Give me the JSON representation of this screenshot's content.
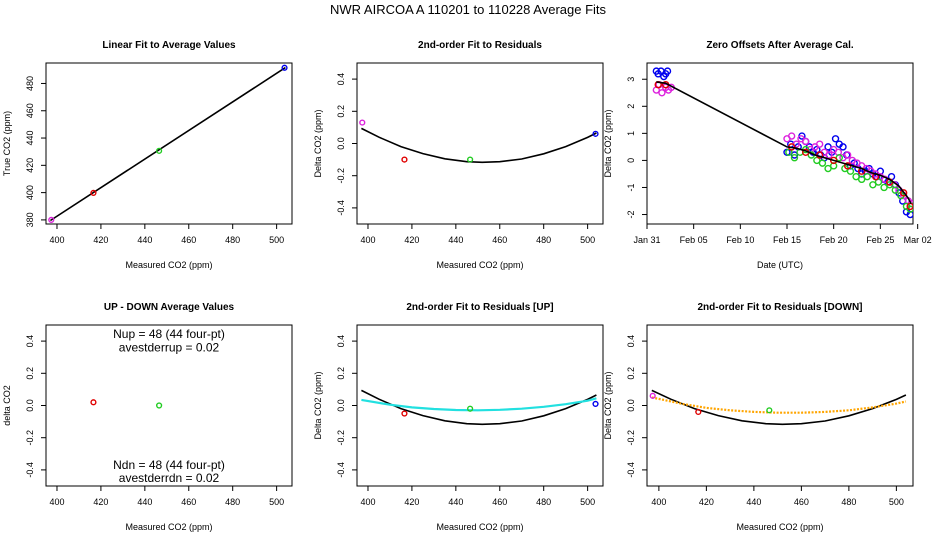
{
  "figure_title": "NWR   AIRCOA A   110201 to 110228   Average Fits",
  "colors": {
    "red": "#e00000",
    "green": "#22cc22",
    "blue": "#0000ee",
    "magenta": "#dd22dd",
    "black": "#000000",
    "cyan": "#22e0e0",
    "orange": "#ffa500"
  },
  "chart_data": [
    {
      "id": "p1",
      "type": "scatter",
      "title": "Linear Fit to Average Values",
      "xlabel": "Measured CO2 (ppm)",
      "ylabel": "True CO2 (ppm)",
      "xlim": [
        395,
        507
      ],
      "ylim": [
        377,
        495
      ],
      "xticks": [
        400,
        420,
        440,
        460,
        480,
        500
      ],
      "yticks": [
        380,
        400,
        420,
        440,
        460,
        480
      ],
      "points": [
        {
          "x": 397.4,
          "y": 380.0,
          "color": "magenta"
        },
        {
          "x": 416.6,
          "y": 399.8,
          "color": "red"
        },
        {
          "x": 446.5,
          "y": 430.6,
          "color": "green"
        },
        {
          "x": 503.6,
          "y": 491.5,
          "color": "blue"
        }
      ],
      "lines": [
        {
          "name": "linear fit",
          "color": "black",
          "width": 1.6,
          "x": [
            397,
            504
          ],
          "y": [
            379.6,
            491.6
          ]
        }
      ]
    },
    {
      "id": "p2",
      "type": "scatter",
      "title": "2nd-order Fit to Residuals",
      "xlabel": "Measured CO2 (ppm)",
      "ylabel": "Delta CO2 (ppm)",
      "xlim": [
        395,
        507
      ],
      "ylim": [
        -0.5,
        0.5
      ],
      "xticks": [
        400,
        420,
        440,
        460,
        480,
        500
      ],
      "yticks": [
        -0.4,
        -0.2,
        0.0,
        0.2,
        0.4
      ],
      "points": [
        {
          "x": 397.4,
          "y": 0.13,
          "color": "magenta"
        },
        {
          "x": 416.6,
          "y": -0.1,
          "color": "red"
        },
        {
          "x": 446.5,
          "y": -0.1,
          "color": "green"
        },
        {
          "x": 503.6,
          "y": 0.06,
          "color": "blue"
        }
      ],
      "lines": [
        {
          "name": "quadratic fit",
          "color": "black",
          "width": 1.6,
          "x": [
            397,
            405,
            415,
            425,
            435,
            445,
            452,
            460,
            470,
            480,
            490,
            500,
            504
          ],
          "y": [
            0.094,
            0.039,
            -0.019,
            -0.063,
            -0.095,
            -0.113,
            -0.117,
            -0.113,
            -0.096,
            -0.064,
            -0.019,
            0.038,
            0.065
          ]
        }
      ]
    },
    {
      "id": "p3",
      "type": "scatter",
      "title": "Zero Offsets After Average Cal.",
      "xlabel": "Date (UTC)",
      "ylabel": "Delta CO2 (ppm)",
      "xlim": [
        0,
        28.5
      ],
      "ylim": [
        -2.35,
        3.6
      ],
      "xticks": [
        0,
        5,
        10,
        15,
        20,
        25,
        29
      ],
      "xticklabels": [
        "Jan 31",
        "Feb 05",
        "Feb 10",
        "Feb 15",
        "Feb 20",
        "Feb 25",
        "Mar 02"
      ],
      "yticks": [
        -2,
        -1,
        0,
        1,
        2,
        3
      ],
      "series": [
        {
          "name": "blue",
          "color": "blue",
          "x": [
            1.0,
            1.2,
            1.5,
            1.8,
            2.0,
            2.2,
            15.0,
            15.4,
            15.8,
            16.2,
            16.6,
            17.0,
            17.4,
            17.8,
            18.2,
            18.6,
            19.0,
            19.4,
            19.8,
            20.2,
            20.6,
            21.0,
            21.4,
            21.8,
            22.2,
            22.6,
            23.0,
            23.4,
            23.8,
            24.2,
            24.6,
            25.0,
            25.4,
            25.8,
            26.2,
            26.6,
            27.0,
            27.4,
            27.8,
            28.2
          ],
          "y": [
            3.3,
            3.2,
            3.3,
            3.1,
            3.2,
            3.3,
            0.3,
            0.6,
            0.2,
            0.5,
            0.9,
            0.7,
            0.5,
            0.3,
            0.4,
            0.2,
            0.1,
            0.5,
            0.3,
            0.8,
            0.6,
            0.5,
            0.2,
            -0.2,
            -0.1,
            -0.3,
            -0.5,
            -0.4,
            -0.3,
            -0.5,
            -0.6,
            -0.4,
            -0.7,
            -0.8,
            -0.6,
            -0.9,
            -1.2,
            -1.5,
            -1.9,
            -2.0
          ]
        },
        {
          "name": "magenta",
          "color": "magenta",
          "x": [
            1.0,
            1.3,
            1.6,
            2.0,
            2.3,
            2.6,
            15.0,
            15.5,
            16.0,
            16.5,
            17.0,
            17.5,
            18.0,
            18.5,
            19.0,
            19.5,
            20.0,
            20.5,
            21.0,
            21.5,
            22.0,
            22.5,
            23.0,
            23.5,
            24.0,
            24.5,
            25.0,
            25.5,
            26.0,
            26.5,
            27.0,
            27.5,
            28.0,
            28.3
          ],
          "y": [
            2.6,
            2.8,
            2.5,
            2.7,
            2.6,
            2.7,
            0.8,
            0.9,
            0.6,
            0.8,
            0.7,
            0.4,
            0.5,
            0.6,
            0.3,
            0.2,
            0.4,
            0.3,
            0.1,
            0.2,
            0.0,
            -0.1,
            -0.2,
            -0.3,
            -0.4,
            -0.5,
            -0.6,
            -0.7,
            -0.8,
            -0.9,
            -1.1,
            -1.3,
            -1.5,
            -1.6
          ]
        },
        {
          "name": "green",
          "color": "green",
          "x": [
            15.2,
            15.8,
            16.4,
            17.0,
            17.6,
            18.2,
            18.8,
            19.4,
            20.0,
            20.6,
            21.2,
            21.8,
            22.4,
            23.0,
            23.6,
            24.2,
            24.8,
            25.4,
            26.0,
            26.6,
            27.2,
            27.8,
            28.2
          ],
          "y": [
            0.3,
            0.1,
            0.3,
            0.4,
            0.2,
            0.0,
            -0.1,
            -0.3,
            -0.2,
            0.1,
            -0.3,
            -0.4,
            -0.6,
            -0.7,
            -0.6,
            -0.9,
            -0.8,
            -1.0,
            -0.9,
            -1.1,
            -1.3,
            -1.7,
            -1.8
          ]
        },
        {
          "name": "red",
          "color": "red",
          "x": [
            1.2,
            2.0,
            15.5,
            17.0,
            18.5,
            20.0,
            21.5,
            23.0,
            24.5,
            26.0,
            27.5,
            28.2
          ],
          "y": [
            2.8,
            2.8,
            0.5,
            0.3,
            0.2,
            0.0,
            -0.2,
            -0.4,
            -0.6,
            -0.8,
            -1.2,
            -1.7
          ]
        }
      ],
      "lines": [
        {
          "name": "offset trend",
          "color": "black",
          "width": 1.6,
          "x": [
            1.0,
            2.0,
            15.0,
            16.0,
            17.0,
            18.0,
            19.0,
            20.0,
            21.0,
            22.0,
            23.0,
            24.0,
            25.0,
            26.0,
            27.0,
            28.0,
            28.3
          ],
          "y": [
            2.9,
            2.85,
            0.5,
            0.45,
            0.35,
            0.2,
            0.1,
            0.0,
            -0.1,
            -0.2,
            -0.3,
            -0.45,
            -0.55,
            -0.7,
            -0.95,
            -1.4,
            -1.6
          ]
        }
      ]
    },
    {
      "id": "p4",
      "type": "scatter",
      "title": "UP - DOWN Average Values",
      "xlabel": "Measured CO2 (ppm)",
      "ylabel": "delta CO2",
      "xlim": [
        395,
        507
      ],
      "ylim": [
        -0.5,
        0.5
      ],
      "xticks": [
        400,
        420,
        440,
        460,
        480,
        500
      ],
      "yticks": [
        -0.4,
        -0.2,
        0.0,
        0.2,
        0.4
      ],
      "points": [
        {
          "x": 416.6,
          "y": 0.02,
          "color": "red"
        },
        {
          "x": 446.5,
          "y": 0.0,
          "color": "green"
        }
      ],
      "lines": [],
      "annotations": [
        {
          "text": "Nup = 48 (44 four-pt)",
          "x": 451,
          "y": 0.445
        },
        {
          "text": "avestderrup =  0.02",
          "x": 451,
          "y": 0.36
        },
        {
          "text": "Ndn = 48 (44 four-pt)",
          "x": 451,
          "y": -0.37
        },
        {
          "text": "avestderrdn =  0.02",
          "x": 451,
          "y": -0.45
        }
      ]
    },
    {
      "id": "p5",
      "type": "scatter",
      "title": "2nd-order Fit to Residuals [UP]",
      "xlabel": "Measured CO2 (ppm)",
      "ylabel": "Delta CO2 (ppm)",
      "xlim": [
        395,
        507
      ],
      "ylim": [
        -0.5,
        0.5
      ],
      "xticks": [
        400,
        420,
        440,
        460,
        480,
        500
      ],
      "yticks": [
        -0.4,
        -0.2,
        0.0,
        0.2,
        0.4
      ],
      "points": [
        {
          "x": 416.6,
          "y": -0.05,
          "color": "red"
        },
        {
          "x": 446.5,
          "y": -0.02,
          "color": "green"
        },
        {
          "x": 503.6,
          "y": 0.01,
          "color": "blue"
        }
      ],
      "lines": [
        {
          "name": "average fit",
          "color": "black",
          "width": 1.6,
          "x": [
            397,
            405,
            415,
            425,
            435,
            445,
            452,
            460,
            470,
            480,
            490,
            500,
            504
          ],
          "y": [
            0.094,
            0.039,
            -0.019,
            -0.063,
            -0.095,
            -0.113,
            -0.117,
            -0.113,
            -0.096,
            -0.064,
            -0.019,
            0.038,
            0.065
          ]
        },
        {
          "name": "up fit",
          "color": "cyan",
          "width": 2.2,
          "x": [
            397,
            410,
            420,
            430,
            440,
            450,
            460,
            470,
            480,
            490,
            500,
            504
          ],
          "y": [
            0.035,
            0.005,
            -0.012,
            -0.022,
            -0.028,
            -0.03,
            -0.027,
            -0.02,
            -0.008,
            0.008,
            0.03,
            0.045
          ]
        }
      ]
    },
    {
      "id": "p6",
      "type": "scatter",
      "title": "2nd-order Fit to Residuals [DOWN]",
      "xlabel": "Measured CO2 (ppm)",
      "ylabel": "Delta CO2 (ppm)",
      "xlim": [
        395,
        507
      ],
      "ylim": [
        -0.5,
        0.5
      ],
      "xticks": [
        400,
        420,
        440,
        460,
        480,
        500
      ],
      "yticks": [
        -0.4,
        -0.2,
        0.0,
        0.2,
        0.4
      ],
      "points": [
        {
          "x": 397.4,
          "y": 0.06,
          "color": "magenta"
        },
        {
          "x": 416.6,
          "y": -0.04,
          "color": "red"
        },
        {
          "x": 446.5,
          "y": -0.03,
          "color": "green"
        }
      ],
      "lines": [
        {
          "name": "average fit",
          "color": "black",
          "width": 1.6,
          "x": [
            397,
            405,
            415,
            425,
            435,
            445,
            452,
            460,
            470,
            480,
            490,
            500,
            504
          ],
          "y": [
            0.094,
            0.039,
            -0.019,
            -0.063,
            -0.095,
            -0.113,
            -0.117,
            -0.113,
            -0.096,
            -0.064,
            -0.019,
            0.038,
            0.065
          ]
        },
        {
          "name": "down fit",
          "color": "orange",
          "width": 2.2,
          "dashed": true,
          "x": [
            397,
            410,
            420,
            430,
            440,
            450,
            460,
            470,
            480,
            490,
            500,
            504
          ],
          "y": [
            0.05,
            0.01,
            -0.015,
            -0.03,
            -0.04,
            -0.045,
            -0.045,
            -0.04,
            -0.03,
            -0.012,
            0.012,
            0.025
          ]
        }
      ]
    }
  ]
}
